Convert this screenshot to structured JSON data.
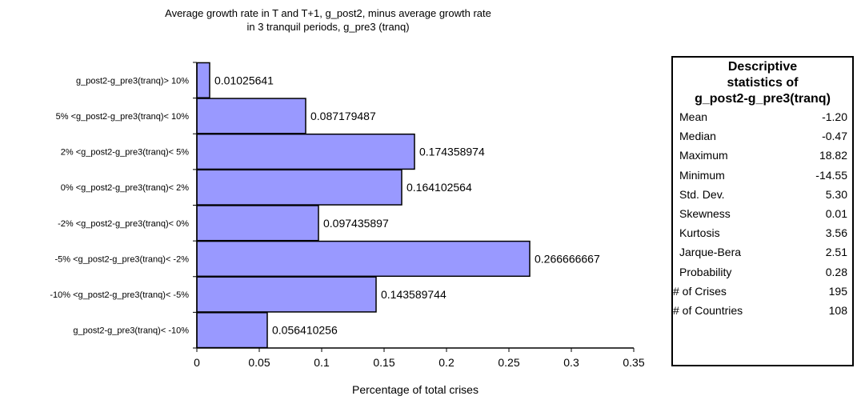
{
  "title_line1": "Average growth rate in T and T+1, g_post2, minus average growth rate",
  "title_line2": "in 3 tranquil periods, g_pre3 (tranq)",
  "chart_data": {
    "type": "bar",
    "orientation": "horizontal",
    "categories": [
      "g_post2-g_pre3(tranq)> 10%",
      "5% <g_post2-g_pre3(tranq)< 10%",
      "2% <g_post2-g_pre3(tranq)< 5%",
      "0% <g_post2-g_pre3(tranq)< 2%",
      "-2% <g_post2-g_pre3(tranq)< 0%",
      "-5% <g_post2-g_pre3(tranq)< -2%",
      "-10% <g_post2-g_pre3(tranq)< -5%",
      "g_post2-g_pre3(tranq)< -10%"
    ],
    "values": [
      0.01025641,
      0.087179487,
      0.174358974,
      0.164102564,
      0.097435897,
      0.266666667,
      0.143589744,
      0.056410256
    ],
    "value_labels": [
      "0.01025641",
      "0.087179487",
      "0.174358974",
      "0.164102564",
      "0.097435897",
      "0.266666667",
      "0.143589744",
      "0.056410256"
    ],
    "xlabel": "Percentage of  total crises",
    "ylabel": "",
    "xlim": [
      0,
      0.35
    ],
    "xticks": [
      "0",
      "0.05",
      "0.1",
      "0.15",
      "0.2",
      "0.25",
      "0.3",
      "0.35"
    ],
    "grid": false,
    "bar_color": "#9999ff",
    "bar_edge": "#000000"
  },
  "stats_table": {
    "title_line1": "Descriptive",
    "title_line2": "statistics of",
    "title_line3": "g_post2-g_pre3(tranq)",
    "rows": [
      {
        "label": "Mean",
        "value": "-1.20"
      },
      {
        "label": "Median",
        "value": "-0.47"
      },
      {
        "label": "Maximum",
        "value": "18.82"
      },
      {
        "label": "Minimum",
        "value": "-14.55"
      },
      {
        "label": "Std. Dev.",
        "value": "5.30"
      },
      {
        "label": "Skewness",
        "value": "0.01"
      },
      {
        "label": "Kurtosis",
        "value": "3.56"
      },
      {
        "label": "Jarque-Bera",
        "value": "2.51"
      },
      {
        "label": "Probability",
        "value": "0.28"
      },
      {
        "label": "# of Crises",
        "value": "195"
      },
      {
        "label": "# of Countries",
        "value": "108"
      }
    ]
  }
}
